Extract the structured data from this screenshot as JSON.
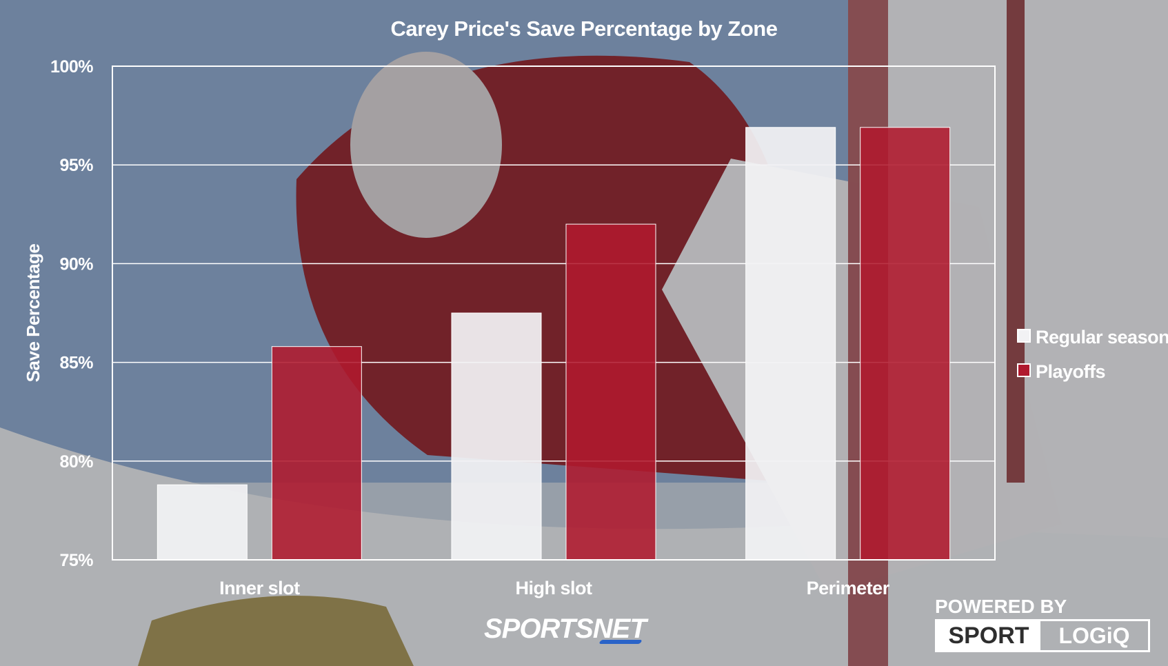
{
  "colors": {
    "regular": "#f2f2f4",
    "playoffs": "#b0192e",
    "grid": "#ffffff",
    "text": "#ffffff",
    "rink": "#8fa4bf",
    "jersey": "#7a1c25"
  },
  "chart_data": {
    "type": "bar",
    "title": "Carey Price's Save Percentage by Zone",
    "xlabel": "",
    "ylabel": "Save Percentage",
    "categories": [
      "Inner slot",
      "High slot",
      "Perimeter"
    ],
    "series": [
      {
        "name": "Regular season",
        "values": [
          78.8,
          87.5,
          96.9
        ]
      },
      {
        "name": "Playoffs",
        "values": [
          85.8,
          92.0,
          96.9
        ]
      }
    ],
    "ylim": [
      75,
      100
    ],
    "yticks": [
      75,
      80,
      85,
      90,
      95,
      100
    ],
    "ytick_labels": [
      "75%",
      "80%",
      "85%",
      "90%",
      "95%",
      "100%"
    ],
    "grid": true,
    "legend_position": "right"
  },
  "branding": {
    "sportsnet": "SPORTSNET",
    "powered_by": "POWERED BY",
    "logo_left": "SPORT",
    "logo_right": "LOGiQ"
  }
}
